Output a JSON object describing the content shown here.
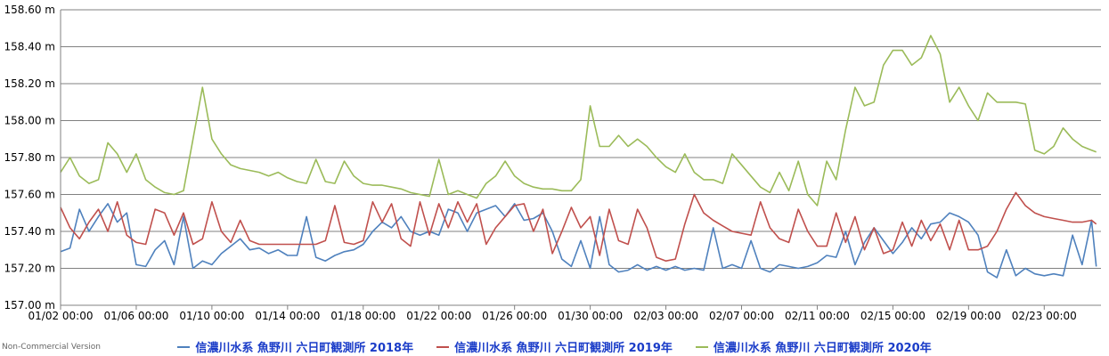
{
  "chart_data": {
    "type": "line",
    "title": "",
    "xlabel": "",
    "ylabel": "",
    "ylim": [
      157.0,
      158.6
    ],
    "xlim": [
      "01/02 00:00",
      "02/26 00:00"
    ],
    "y_ticks": [
      "157.00 m",
      "157.20 m",
      "157.40 m",
      "157.60 m",
      "157.80 m",
      "158.00 m",
      "158.20 m",
      "158.40 m",
      "158.60 m"
    ],
    "x_ticks": [
      "01/02 00:00",
      "01/06 00:00",
      "01/10 00:00",
      "01/14 00:00",
      "01/18 00:00",
      "01/22 00:00",
      "01/26 00:00",
      "01/30 00:00",
      "02/03 00:00",
      "02/07 00:00",
      "02/11 00:00",
      "02/15 00:00",
      "02/19 00:00",
      "02/23 00:00"
    ],
    "grid": "horizontal",
    "legend": "bottom",
    "series": [
      {
        "name": "信濃川水系 魚野川 六日町観測所 2018年",
        "color": "#4f81bd",
        "x": [
          "01/02 00:00",
          "01/02 12:00",
          "01/03 00:00",
          "01/03 12:00",
          "01/04 00:00",
          "01/04 12:00",
          "01/05 00:00",
          "01/05 12:00",
          "01/06 00:00",
          "01/06 12:00",
          "01/07 00:00",
          "01/07 12:00",
          "01/08 00:00",
          "01/08 12:00",
          "01/09 00:00",
          "01/09 12:00",
          "01/10 00:00",
          "01/10 12:00",
          "01/11 00:00",
          "01/11 12:00",
          "01/12 00:00",
          "01/12 12:00",
          "01/13 00:00",
          "01/13 12:00",
          "01/14 00:00",
          "01/14 12:00",
          "01/15 00:00",
          "01/15 12:00",
          "01/16 00:00",
          "01/16 12:00",
          "01/17 00:00",
          "01/17 12:00",
          "01/18 00:00",
          "01/18 12:00",
          "01/19 00:00",
          "01/19 12:00",
          "01/20 00:00",
          "01/20 12:00",
          "01/21 00:00",
          "01/21 12:00",
          "01/22 00:00",
          "01/22 12:00",
          "01/23 00:00",
          "01/23 12:00",
          "01/24 00:00",
          "01/24 12:00",
          "01/25 00:00",
          "01/25 12:00",
          "01/26 00:00",
          "01/26 12:00",
          "01/27 00:00",
          "01/27 12:00",
          "01/28 00:00",
          "01/28 12:00",
          "01/29 00:00",
          "01/29 12:00",
          "01/30 00:00",
          "01/30 12:00",
          "01/31 00:00",
          "01/31 12:00",
          "02/01 00:00",
          "02/01 12:00",
          "02/02 00:00",
          "02/02 12:00",
          "02/03 00:00",
          "02/03 12:00",
          "02/04 00:00",
          "02/04 12:00",
          "02/05 00:00",
          "02/05 12:00",
          "02/06 00:00",
          "02/06 12:00",
          "02/07 00:00",
          "02/07 12:00",
          "02/08 00:00",
          "02/08 12:00",
          "02/09 00:00",
          "02/09 12:00",
          "02/10 00:00",
          "02/10 12:00",
          "02/11 00:00",
          "02/11 12:00",
          "02/12 00:00",
          "02/12 12:00",
          "02/13 00:00",
          "02/13 12:00",
          "02/14 00:00",
          "02/14 12:00",
          "02/15 00:00",
          "02/15 12:00",
          "02/16 00:00",
          "02/16 12:00",
          "02/17 00:00",
          "02/17 12:00",
          "02/18 00:00",
          "02/18 12:00",
          "02/19 00:00",
          "02/19 12:00",
          "02/20 00:00",
          "02/20 12:00",
          "02/21 00:00",
          "02/21 12:00",
          "02/22 00:00",
          "02/22 12:00",
          "02/23 00:00",
          "02/23 12:00",
          "02/24 00:00",
          "02/24 12:00",
          "02/25 00:00",
          "02/25 12:00",
          "02/25 18:00"
        ],
        "values": [
          157.29,
          157.31,
          157.52,
          157.4,
          157.48,
          157.55,
          157.45,
          157.5,
          157.22,
          157.21,
          157.3,
          157.35,
          157.22,
          157.48,
          157.2,
          157.24,
          157.22,
          157.28,
          157.32,
          157.36,
          157.3,
          157.31,
          157.28,
          157.3,
          157.27,
          157.27,
          157.48,
          157.26,
          157.24,
          157.27,
          157.29,
          157.3,
          157.33,
          157.4,
          157.45,
          157.42,
          157.48,
          157.4,
          157.38,
          157.4,
          157.38,
          157.52,
          157.5,
          157.4,
          157.5,
          157.52,
          157.54,
          157.48,
          157.55,
          157.46,
          157.47,
          157.5,
          157.4,
          157.25,
          157.21,
          157.35,
          157.2,
          157.48,
          157.22,
          157.18,
          157.19,
          157.22,
          157.19,
          157.21,
          157.19,
          157.21,
          157.19,
          157.2,
          157.19,
          157.42,
          157.2,
          157.22,
          157.2,
          157.35,
          157.2,
          157.18,
          157.22,
          157.21,
          157.2,
          157.21,
          157.23,
          157.27,
          157.26,
          157.4,
          157.22,
          157.34,
          157.42,
          157.35,
          157.28,
          157.34,
          157.42,
          157.36,
          157.44,
          157.45,
          157.5,
          157.48,
          157.45,
          157.38,
          157.18,
          157.15,
          157.3,
          157.16,
          157.2,
          157.17,
          157.16,
          157.17,
          157.16,
          157.38,
          157.22,
          157.46,
          157.21
        ],
        "label_note": ""
      },
      {
        "name": "信濃川水系 魚野川 六日町観測所 2019年",
        "color": "#c0504d",
        "x": [
          "01/02 00:00",
          "01/02 12:00",
          "01/03 00:00",
          "01/03 12:00",
          "01/04 00:00",
          "01/04 12:00",
          "01/05 00:00",
          "01/05 12:00",
          "01/06 00:00",
          "01/06 12:00",
          "01/07 00:00",
          "01/07 12:00",
          "01/08 00:00",
          "01/08 12:00",
          "01/09 00:00",
          "01/09 12:00",
          "01/10 00:00",
          "01/10 12:00",
          "01/11 00:00",
          "01/11 12:00",
          "01/12 00:00",
          "01/12 12:00",
          "01/13 00:00",
          "01/13 12:00",
          "01/14 00:00",
          "01/14 12:00",
          "01/15 00:00",
          "01/15 12:00",
          "01/16 00:00",
          "01/16 12:00",
          "01/17 00:00",
          "01/17 12:00",
          "01/18 00:00",
          "01/18 12:00",
          "01/19 00:00",
          "01/19 12:00",
          "01/20 00:00",
          "01/20 12:00",
          "01/21 00:00",
          "01/21 12:00",
          "01/22 00:00",
          "01/22 12:00",
          "01/23 00:00",
          "01/23 12:00",
          "01/24 00:00",
          "01/24 12:00",
          "01/25 00:00",
          "01/25 12:00",
          "01/26 00:00",
          "01/26 12:00",
          "01/27 00:00",
          "01/27 12:00",
          "01/28 00:00",
          "01/28 12:00",
          "01/29 00:00",
          "01/29 12:00",
          "01/30 00:00",
          "01/30 12:00",
          "01/31 00:00",
          "01/31 12:00",
          "02/01 00:00",
          "02/01 12:00",
          "02/02 00:00",
          "02/02 12:00",
          "02/03 00:00",
          "02/03 12:00",
          "02/04 00:00",
          "02/04 12:00",
          "02/05 00:00",
          "02/05 12:00",
          "02/06 00:00",
          "02/06 12:00",
          "02/07 00:00",
          "02/07 12:00",
          "02/08 00:00",
          "02/08 12:00",
          "02/09 00:00",
          "02/09 12:00",
          "02/10 00:00",
          "02/10 12:00",
          "02/11 00:00",
          "02/11 12:00",
          "02/12 00:00",
          "02/12 12:00",
          "02/13 00:00",
          "02/13 12:00",
          "02/14 00:00",
          "02/14 12:00",
          "02/15 00:00",
          "02/15 12:00",
          "02/16 00:00",
          "02/16 12:00",
          "02/17 00:00",
          "02/17 12:00",
          "02/18 00:00",
          "02/18 12:00",
          "02/19 00:00",
          "02/19 12:00",
          "02/20 00:00",
          "02/20 12:00",
          "02/21 00:00",
          "02/21 12:00",
          "02/22 00:00",
          "02/22 12:00",
          "02/23 00:00",
          "02/23 12:00",
          "02/24 00:00",
          "02/24 12:00",
          "02/25 00:00",
          "02/25 12:00",
          "02/25 18:00"
        ],
        "values": [
          157.53,
          157.42,
          157.36,
          157.45,
          157.52,
          157.4,
          157.56,
          157.38,
          157.34,
          157.33,
          157.52,
          157.5,
          157.38,
          157.5,
          157.33,
          157.36,
          157.56,
          157.4,
          157.34,
          157.46,
          157.35,
          157.33,
          157.33,
          157.33,
          157.33,
          157.33,
          157.33,
          157.33,
          157.35,
          157.54,
          157.34,
          157.33,
          157.35,
          157.56,
          157.45,
          157.55,
          157.36,
          157.32,
          157.56,
          157.38,
          157.55,
          157.42,
          157.56,
          157.45,
          157.55,
          157.33,
          157.42,
          157.48,
          157.54,
          157.55,
          157.4,
          157.52,
          157.28,
          157.4,
          157.53,
          157.42,
          157.48,
          157.27,
          157.52,
          157.35,
          157.33,
          157.52,
          157.42,
          157.26,
          157.24,
          157.25,
          157.44,
          157.6,
          157.5,
          157.46,
          157.43,
          157.4,
          157.39,
          157.38,
          157.56,
          157.42,
          157.36,
          157.34,
          157.52,
          157.4,
          157.32,
          157.32,
          157.5,
          157.34,
          157.48,
          157.3,
          157.42,
          157.28,
          157.3,
          157.45,
          157.32,
          157.46,
          157.35,
          157.44,
          157.3,
          157.46,
          157.3,
          157.3,
          157.32,
          157.4,
          157.52,
          157.61,
          157.54,
          157.5,
          157.48,
          157.47,
          157.46,
          157.45,
          157.45,
          157.46,
          157.44
        ],
        "label_note": ""
      },
      {
        "name": "信濃川水系 魚野川 六日町観測所 2020年",
        "color": "#9bbb59",
        "x": [
          "01/02 00:00",
          "01/02 12:00",
          "01/03 00:00",
          "01/03 12:00",
          "01/04 00:00",
          "01/04 12:00",
          "01/05 00:00",
          "01/05 12:00",
          "01/06 00:00",
          "01/06 12:00",
          "01/07 00:00",
          "01/07 12:00",
          "01/08 00:00",
          "01/08 12:00",
          "01/09 00:00",
          "01/09 12:00",
          "01/10 00:00",
          "01/10 12:00",
          "01/11 00:00",
          "01/11 12:00",
          "01/12 00:00",
          "01/12 12:00",
          "01/13 00:00",
          "01/13 12:00",
          "01/14 00:00",
          "01/14 12:00",
          "01/15 00:00",
          "01/15 12:00",
          "01/16 00:00",
          "01/16 12:00",
          "01/17 00:00",
          "01/17 12:00",
          "01/18 00:00",
          "01/18 12:00",
          "01/19 00:00",
          "01/19 12:00",
          "01/20 00:00",
          "01/20 12:00",
          "01/21 00:00",
          "01/21 12:00",
          "01/22 00:00",
          "01/22 12:00",
          "01/23 00:00",
          "01/23 12:00",
          "01/24 00:00",
          "01/24 12:00",
          "01/25 00:00",
          "01/25 12:00",
          "01/26 00:00",
          "01/26 12:00",
          "01/27 00:00",
          "01/27 12:00",
          "01/28 00:00",
          "01/28 12:00",
          "01/29 00:00",
          "01/29 12:00",
          "01/30 00:00",
          "01/30 12:00",
          "01/31 00:00",
          "01/31 12:00",
          "02/01 00:00",
          "02/01 12:00",
          "02/02 00:00",
          "02/02 12:00",
          "02/03 00:00",
          "02/03 12:00",
          "02/04 00:00",
          "02/04 12:00",
          "02/05 00:00",
          "02/05 12:00",
          "02/06 00:00",
          "02/06 12:00",
          "02/07 00:00",
          "02/07 12:00",
          "02/08 00:00",
          "02/08 12:00",
          "02/09 00:00",
          "02/09 12:00",
          "02/10 00:00",
          "02/10 12:00",
          "02/11 00:00",
          "02/11 12:00",
          "02/12 00:00",
          "02/12 12:00",
          "02/13 00:00",
          "02/13 12:00",
          "02/14 00:00",
          "02/14 12:00",
          "02/15 00:00",
          "02/15 12:00",
          "02/16 00:00",
          "02/16 12:00",
          "02/17 00:00",
          "02/17 12:00",
          "02/18 00:00",
          "02/18 12:00",
          "02/19 00:00",
          "02/19 12:00",
          "02/20 00:00",
          "02/20 12:00",
          "02/21 00:00",
          "02/21 12:00",
          "02/22 00:00",
          "02/22 12:00",
          "02/23 00:00",
          "02/23 12:00",
          "02/24 00:00",
          "02/24 12:00",
          "02/25 00:00",
          "02/25 12:00",
          "02/25 18:00"
        ],
        "values": [
          157.72,
          157.8,
          157.7,
          157.66,
          157.68,
          157.88,
          157.82,
          157.72,
          157.82,
          157.68,
          157.64,
          157.61,
          157.6,
          157.62,
          157.9,
          158.18,
          157.9,
          157.82,
          157.76,
          157.74,
          157.73,
          157.72,
          157.7,
          157.72,
          157.69,
          157.67,
          157.66,
          157.79,
          157.67,
          157.66,
          157.78,
          157.7,
          157.66,
          157.65,
          157.65,
          157.64,
          157.63,
          157.61,
          157.6,
          157.59,
          157.79,
          157.6,
          157.62,
          157.6,
          157.58,
          157.66,
          157.7,
          157.78,
          157.7,
          157.66,
          157.64,
          157.63,
          157.63,
          157.62,
          157.62,
          157.68,
          158.08,
          157.86,
          157.86,
          157.92,
          157.86,
          157.9,
          157.86,
          157.8,
          157.75,
          157.72,
          157.82,
          157.72,
          157.68,
          157.68,
          157.66,
          157.82,
          157.76,
          157.7,
          157.64,
          157.61,
          157.72,
          157.62,
          157.78,
          157.6,
          157.54,
          157.78,
          157.68,
          157.95,
          158.18,
          158.08,
          158.1,
          158.3,
          158.38,
          158.38,
          158.3,
          158.34,
          158.46,
          158.36,
          158.1,
          158.18,
          158.08,
          158.0,
          158.15,
          158.1,
          158.1,
          158.1,
          158.09,
          157.84,
          157.82,
          157.86,
          157.96,
          157.9,
          157.86,
          157.84,
          157.83
        ],
        "label_note": ""
      }
    ]
  },
  "watermark": "Non-Commercial Version",
  "legend_items": [
    "信濃川水系 魚野川 六日町観測所 2018年",
    "信濃川水系 魚野川 六日町観測所 2019年",
    "信濃川水系 魚野川 六日町観測所 2020年"
  ],
  "colors": {
    "s2018": "#4f81bd",
    "s2019": "#c0504d",
    "s2020": "#9bbb59",
    "legend_text": "#1a3cc8"
  }
}
